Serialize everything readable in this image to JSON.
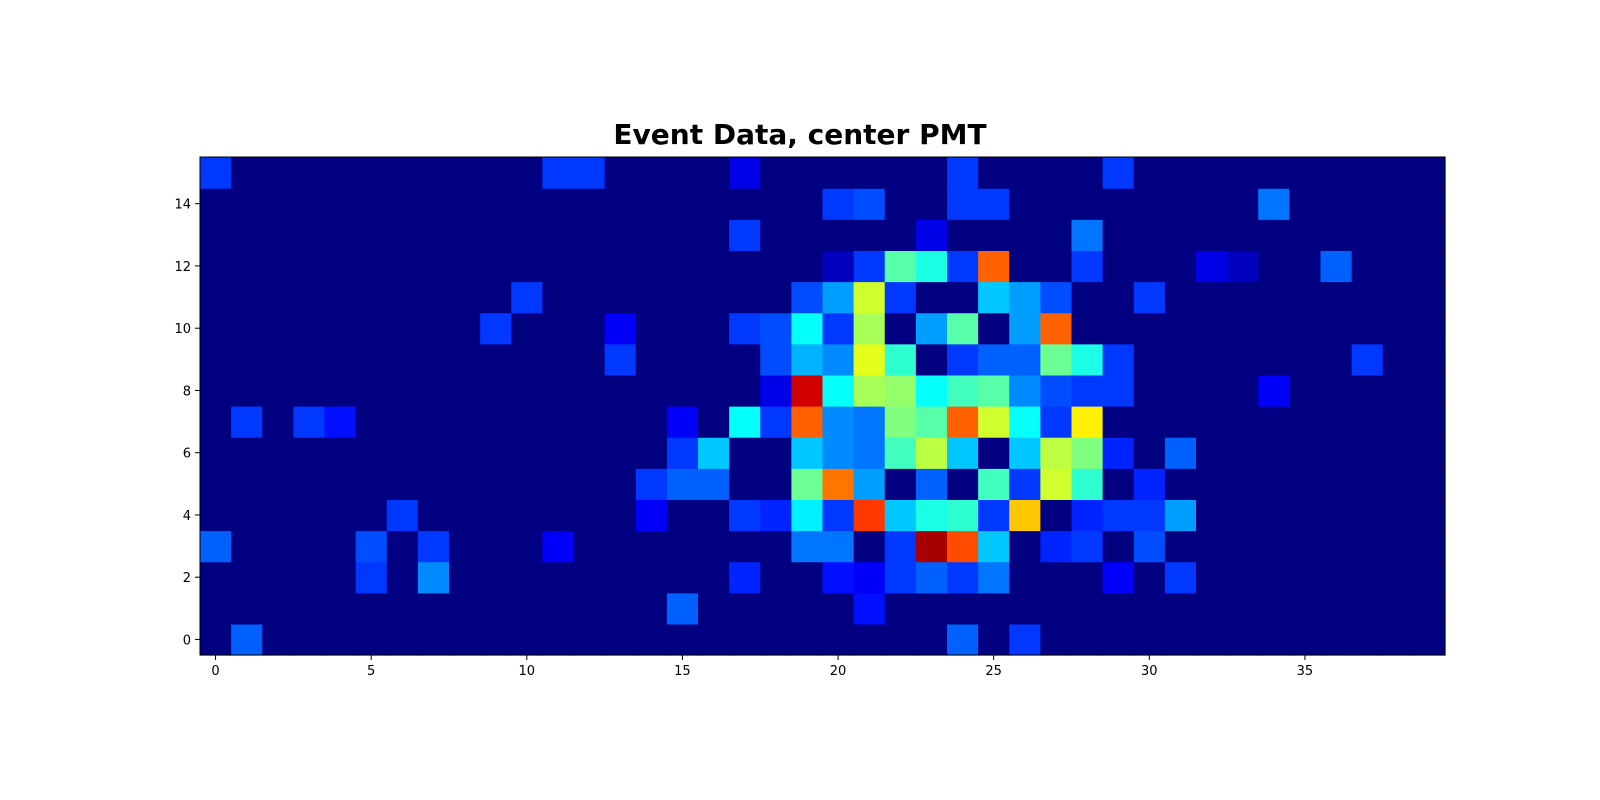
{
  "chart_data": {
    "type": "heatmap",
    "title": "Event Data, center PMT",
    "xlabel": "",
    "ylabel": "",
    "colormap": "jet",
    "value_range": [
      0,
      5
    ],
    "xlim": [
      -0.5,
      39.5
    ],
    "ylim": [
      -0.5,
      15.5
    ],
    "x_ticks": [
      0,
      5,
      10,
      15,
      20,
      25,
      30,
      35
    ],
    "y_ticks": [
      0,
      2,
      4,
      6,
      8,
      10,
      12,
      14
    ],
    "grid": false,
    "n_cols": 40,
    "n_rows": 16,
    "rows_bottom_to_top": [
      [
        0,
        1.1,
        0,
        0,
        0,
        0,
        0,
        0,
        0,
        0,
        0,
        0,
        0,
        0,
        0,
        0,
        0,
        0,
        0,
        0,
        0,
        0,
        0,
        0,
        1.1,
        0,
        0.9,
        0,
        0,
        0,
        0,
        0,
        0,
        0,
        0,
        0,
        0,
        0,
        0,
        0
      ],
      [
        0,
        0,
        0,
        0,
        0,
        0,
        0,
        0,
        0,
        0,
        0,
        0,
        0,
        0,
        0,
        1.1,
        0,
        0,
        0,
        0,
        0,
        0.7,
        0,
        0,
        0,
        0,
        0,
        0,
        0,
        0,
        0,
        0,
        0,
        0,
        0,
        0,
        0,
        0,
        0,
        0
      ],
      [
        0,
        0,
        0,
        0,
        0,
        0.9,
        0,
        1.3,
        0,
        0,
        0,
        0,
        0,
        0,
        0,
        0,
        0,
        0.8,
        0,
        0,
        0.7,
        0.6,
        0.9,
        1.1,
        0.9,
        1.2,
        0,
        0,
        0,
        0.6,
        0,
        0.9,
        0,
        0,
        0,
        0,
        0,
        0,
        0,
        0
      ],
      [
        1.1,
        0,
        0,
        0,
        0,
        1.0,
        0,
        0.9,
        0,
        0,
        0,
        0.6,
        0,
        0,
        0,
        0,
        0,
        0,
        0,
        1.2,
        1.2,
        0,
        0.9,
        4.8,
        4.0,
        1.6,
        0,
        0.8,
        0.9,
        0,
        1.0,
        0,
        0,
        0,
        0,
        0,
        0,
        0,
        0,
        0
      ],
      [
        0,
        0,
        0,
        0,
        0,
        0,
        0.9,
        0,
        0,
        0,
        0,
        0,
        0,
        0,
        0.6,
        0,
        0,
        0.9,
        0.8,
        1.8,
        0.9,
        4.1,
        1.6,
        2.0,
        2.1,
        0.9,
        3.4,
        0,
        0.8,
        0.9,
        0.9,
        1.4,
        0,
        0,
        0,
        0,
        0,
        0,
        0,
        0
      ],
      [
        0,
        0,
        0,
        0,
        0,
        0,
        0,
        0,
        0,
        0,
        0,
        0,
        0,
        0,
        0.9,
        1.1,
        1.1,
        0,
        0,
        2.4,
        3.8,
        1.4,
        0,
        1.1,
        0,
        2.2,
        0.9,
        2.9,
        2.1,
        0,
        0.8,
        0,
        0,
        0,
        0,
        0,
        0,
        0,
        0,
        0
      ],
      [
        0,
        0,
        0,
        0,
        0,
        0,
        0,
        0,
        0,
        0,
        0,
        0,
        0,
        0,
        0,
        0.9,
        1.6,
        0,
        0,
        1.6,
        1.3,
        1.2,
        2.2,
        2.8,
        1.6,
        0,
        1.6,
        2.8,
        2.5,
        0.8,
        0,
        1.1,
        0,
        0,
        0,
        0,
        0,
        0,
        0,
        0
      ],
      [
        0,
        0.9,
        0,
        0.9,
        0.7,
        0,
        0,
        0,
        0,
        0,
        0,
        0,
        0,
        0,
        0,
        0.6,
        0,
        1.9,
        0.9,
        3.9,
        1.3,
        1.2,
        2.5,
        2.3,
        3.9,
        2.9,
        1.9,
        0.9,
        3.2,
        0,
        0,
        0,
        0,
        0,
        0,
        0,
        0,
        0,
        0,
        0
      ],
      [
        0,
        0,
        0,
        0,
        0,
        0,
        0,
        0,
        0,
        0,
        0,
        0,
        0,
        0,
        0,
        0,
        0,
        0,
        0.5,
        4.6,
        1.9,
        2.7,
        2.6,
        1.9,
        2.2,
        2.3,
        1.3,
        1.0,
        0.9,
        0.9,
        0,
        0,
        0,
        0,
        0.6,
        0,
        0,
        0,
        0,
        0
      ],
      [
        0,
        0,
        0,
        0,
        0,
        0,
        0,
        0,
        0,
        0,
        0,
        0,
        0,
        0.9,
        0,
        0,
        0,
        0,
        1.0,
        1.5,
        1.3,
        3.0,
        2.1,
        0,
        0.9,
        1.1,
        1.1,
        2.4,
        2.0,
        0.9,
        0,
        0,
        0,
        0,
        0,
        0,
        0,
        0.9,
        0,
        0
      ],
      [
        0,
        0,
        0,
        0,
        0,
        0,
        0,
        0,
        0,
        0.9,
        0,
        0,
        0,
        0.6,
        0,
        0,
        0,
        0.9,
        1.0,
        1.9,
        0.9,
        2.7,
        0,
        1.4,
        2.3,
        0,
        1.4,
        3.9,
        0,
        0,
        0,
        0,
        0,
        0,
        0,
        0,
        0,
        0,
        0,
        0
      ],
      [
        0,
        0,
        0,
        0,
        0,
        0,
        0,
        0,
        0,
        0,
        0.9,
        0,
        0,
        0,
        0,
        0,
        0,
        0,
        0,
        1.0,
        1.4,
        2.9,
        0.9,
        0,
        0,
        1.6,
        1.4,
        1.0,
        0,
        0,
        0.9,
        0,
        0,
        0,
        0,
        0,
        0,
        0,
        0,
        0
      ],
      [
        0,
        0,
        0,
        0,
        0,
        0,
        0,
        0,
        0,
        0,
        0,
        0,
        0,
        0,
        0,
        0,
        0,
        0,
        0,
        0,
        0.3,
        0.9,
        2.3,
        2.0,
        0.9,
        3.9,
        0,
        0,
        0.9,
        0,
        0,
        0,
        0.5,
        0.3,
        0,
        0,
        1.1,
        0,
        0,
        0
      ],
      [
        0,
        0,
        0,
        0,
        0,
        0,
        0,
        0,
        0,
        0,
        0,
        0,
        0,
        0,
        0,
        0,
        0,
        0.9,
        0,
        0,
        0,
        0,
        0,
        0.5,
        0,
        0,
        0,
        0,
        1.2,
        0,
        0,
        0,
        0,
        0,
        0,
        0,
        0,
        0,
        0,
        0
      ],
      [
        0,
        0,
        0,
        0,
        0,
        0,
        0,
        0,
        0,
        0,
        0,
        0,
        0,
        0,
        0,
        0,
        0,
        0,
        0,
        0,
        0.9,
        1.0,
        0,
        0,
        0.9,
        0.9,
        0,
        0,
        0,
        0,
        0,
        0,
        0,
        0,
        1.2,
        0,
        0,
        0,
        0,
        0
      ],
      [
        0.9,
        0,
        0,
        0,
        0,
        0,
        0,
        0,
        0,
        0,
        0,
        0.9,
        0.9,
        0,
        0,
        0,
        0,
        0.5,
        0,
        0,
        0,
        0,
        0,
        0,
        0.9,
        0,
        0,
        0,
        0,
        0.9,
        0,
        0,
        0,
        0,
        0,
        0,
        0,
        0,
        0,
        0
      ]
    ]
  }
}
